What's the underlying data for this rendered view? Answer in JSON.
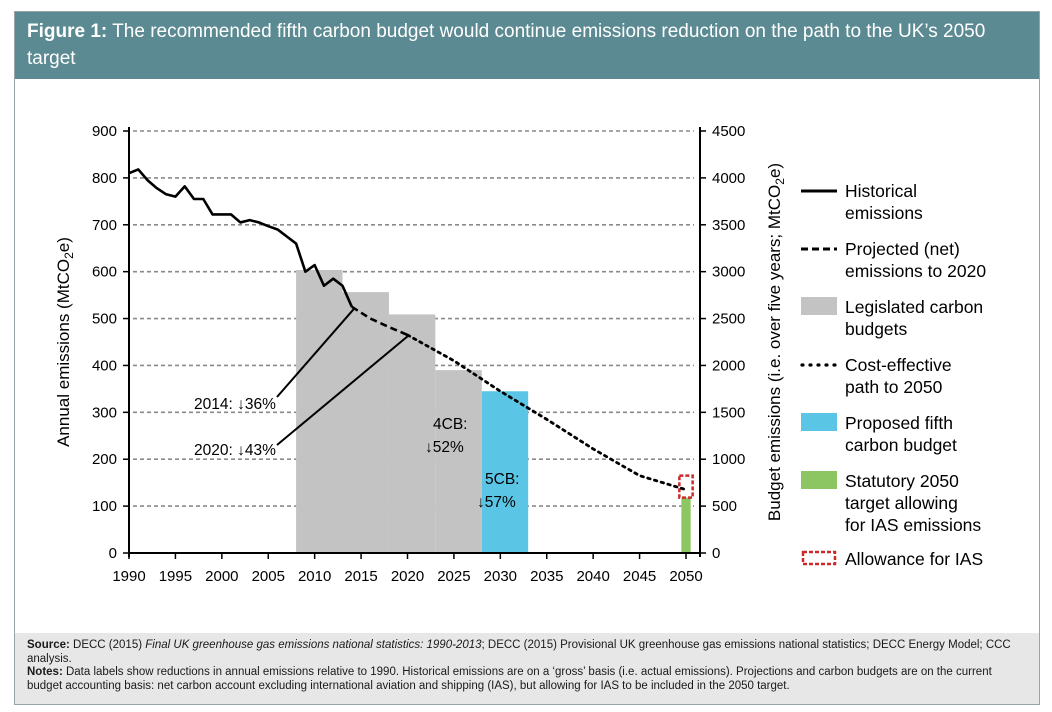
{
  "header": {
    "figure_label": "Figure 1:",
    "title": "The recommended fifth carbon budget would continue emissions reduction on the path to the UK’s 2050 target"
  },
  "chart_data": {
    "type": "line",
    "x_ticks": [
      "1990",
      "1995",
      "2000",
      "2005",
      "2010",
      "2015",
      "2020",
      "2025",
      "2030",
      "2035",
      "2040",
      "2045",
      "2050"
    ],
    "y_left_ticks": [
      "0",
      "100",
      "200",
      "300",
      "400",
      "500",
      "600",
      "700",
      "800",
      "900"
    ],
    "y_right_ticks": [
      "0",
      "500",
      "1000",
      "1500",
      "2000",
      "2500",
      "3000",
      "3500",
      "4000",
      "4500"
    ],
    "xlim": [
      1990,
      2050
    ],
    "ylim_left": [
      0,
      900
    ],
    "ylim_right": [
      0,
      4500
    ],
    "ylabel_left": "Annual emissions (MtCO",
    "ylabel_left_sub": "2",
    "ylabel_left_end": "e)",
    "ylabel_right": "Budget emissions (i.e. over five years; MtCO",
    "ylabel_right_sub": "2",
    "ylabel_right_end": "e)",
    "grid": true,
    "historical": {
      "x": [
        1990,
        1991,
        1992,
        1993,
        1994,
        1995,
        1996,
        1997,
        1998,
        1999,
        2000,
        2001,
        2002,
        2003,
        2004,
        2005,
        2006,
        2007,
        2008,
        2009,
        2010,
        2011,
        2012,
        2013,
        2014
      ],
      "y": [
        810,
        818,
        795,
        778,
        765,
        760,
        782,
        755,
        755,
        722,
        722,
        722,
        705,
        710,
        705,
        697,
        690,
        675,
        660,
        600,
        614,
        570,
        585,
        570,
        525
      ]
    },
    "projected": {
      "x": [
        2014,
        2016,
        2018,
        2020
      ],
      "y": [
        525,
        500,
        482,
        465
      ]
    },
    "cost_effective": {
      "x": [
        2020,
        2025,
        2030,
        2035,
        2040,
        2045,
        2050
      ],
      "y": [
        465,
        410,
        345,
        285,
        222,
        165,
        135
      ]
    },
    "legislated_budgets": [
      {
        "start": 2008,
        "end": 2012,
        "value": 3018
      },
      {
        "start": 2013,
        "end": 2017,
        "value": 2782
      },
      {
        "start": 2018,
        "end": 2022,
        "value": 2544
      },
      {
        "start": 2023,
        "end": 2027,
        "value": 1950
      }
    ],
    "proposed_budget": {
      "start": 2028,
      "end": 2032,
      "value": 1725
    },
    "target_2050": {
      "start": 2049.5,
      "end": 2050.5,
      "value": 118
    },
    "ias_allowance": {
      "start": 2049.5,
      "end": 2050.5,
      "low": 118,
      "high": 165
    },
    "annotations": [
      {
        "text": "2014: ↓36%"
      },
      {
        "text": "2020: ↓43%"
      },
      {
        "text1": "4CB:",
        "text2": "↓52%"
      },
      {
        "text1": "5CB:",
        "text2": "↓57%"
      }
    ],
    "legend": [
      {
        "lines": [
          "Historical",
          "emissions"
        ],
        "style": "solid",
        "color": "#000000"
      },
      {
        "lines": [
          "Projected (net)",
          "emissions to 2020"
        ],
        "style": "dashed",
        "color": "#000000"
      },
      {
        "lines": [
          "Legislated carbon",
          "budgets"
        ],
        "style": "box",
        "color": "#c3c3c3"
      },
      {
        "lines": [
          "Cost-effective",
          "path to 2050"
        ],
        "style": "dotted",
        "color": "#000000"
      },
      {
        "lines": [
          "Proposed fifth",
          "carbon budget"
        ],
        "style": "box",
        "color": "#5bc5e6"
      },
      {
        "lines": [
          "Statutory 2050",
          "target allowing",
          "for IAS emissions"
        ],
        "style": "box",
        "color": "#8cc663"
      },
      {
        "lines": [
          "Allowance for IAS"
        ],
        "style": "dashed-box",
        "color": "#cc2a2a"
      }
    ],
    "colors": {
      "legislated": "#c3c3c3",
      "proposed": "#5bc5e6",
      "target": "#8cc663",
      "ias": "#cc2a2a",
      "grid": "#8a8a8a"
    }
  },
  "footer": {
    "source_label": "Source:",
    "source_text_1": "DECC (2015)",
    "source_italic": "Final UK greenhouse gas emissions national statistics: 1990-2013",
    "source_text_2": "; DECC (2015) Provisional UK greenhouse gas emissions national statistics; DECC Energy Model; CCC analysis.",
    "notes_label": "Notes:",
    "notes_text": "Data labels show reductions in annual emissions relative to 1990. Historical emissions are on a ‘gross’ basis (i.e. actual emissions). Projections and carbon budgets are on the current budget accounting basis: net carbon account excluding international aviation and shipping (IAS), but allowing for IAS to be included in the 2050 target."
  }
}
